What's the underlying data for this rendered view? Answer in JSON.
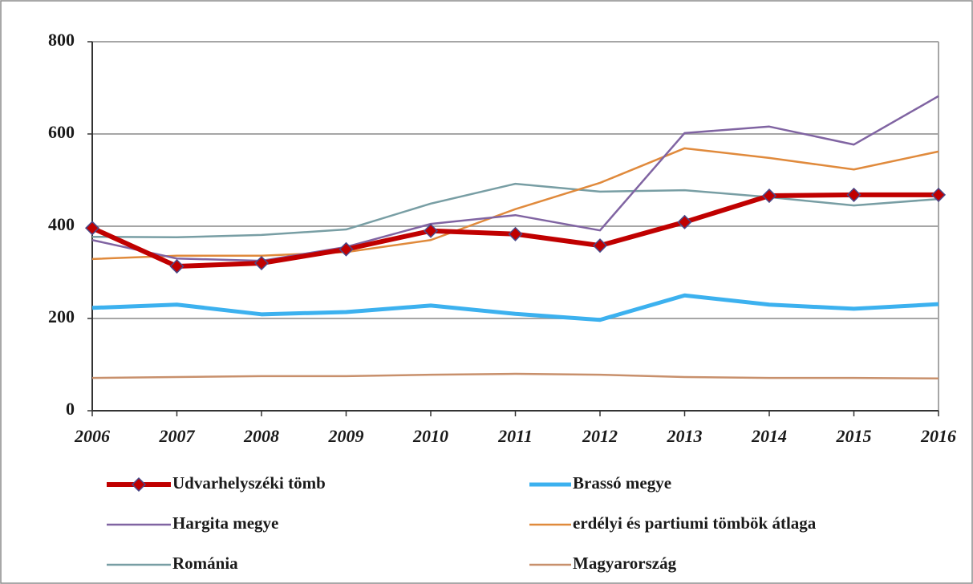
{
  "chart_data": {
    "type": "line",
    "categories": [
      "2006",
      "2007",
      "2008",
      "2009",
      "2010",
      "2011",
      "2012",
      "2013",
      "2014",
      "2015",
      "2016"
    ],
    "ylim": [
      0,
      800
    ],
    "yticks": [
      0,
      200,
      400,
      600,
      800
    ],
    "grid": true,
    "legend": "bottom",
    "series": [
      {
        "name": "Udvarhelyszéki tömb",
        "color": "#c00000",
        "width": 6,
        "marker": "diamond",
        "values": [
          396,
          313,
          320,
          350,
          390,
          383,
          358,
          409,
          466,
          468,
          468
        ]
      },
      {
        "name": "Brassó megye",
        "color": "#3cb1ef",
        "width": 5,
        "values": [
          223,
          230,
          209,
          214,
          228,
          210,
          197,
          250,
          230,
          221,
          231
        ]
      },
      {
        "name": "Hargita megye",
        "color": "#8064a2",
        "width": 2.5,
        "values": [
          370,
          330,
          325,
          355,
          405,
          424,
          391,
          602,
          616,
          577,
          682
        ]
      },
      {
        "name": "erdélyi és partiumi tömbök átlaga",
        "color": "#e08a3c",
        "width": 2.5,
        "values": [
          329,
          336,
          336,
          344,
          370,
          437,
          494,
          569,
          548,
          523,
          562
        ]
      },
      {
        "name": "Románia",
        "color": "#789ea4",
        "width": 2.5,
        "values": [
          377,
          376,
          381,
          393,
          449,
          492,
          475,
          478,
          463,
          445,
          459
        ]
      },
      {
        "name": "Magyarország",
        "color": "#c8906c",
        "width": 2.5,
        "values": [
          71,
          73,
          75,
          75,
          78,
          80,
          78,
          73,
          71,
          71,
          70
        ]
      }
    ]
  }
}
